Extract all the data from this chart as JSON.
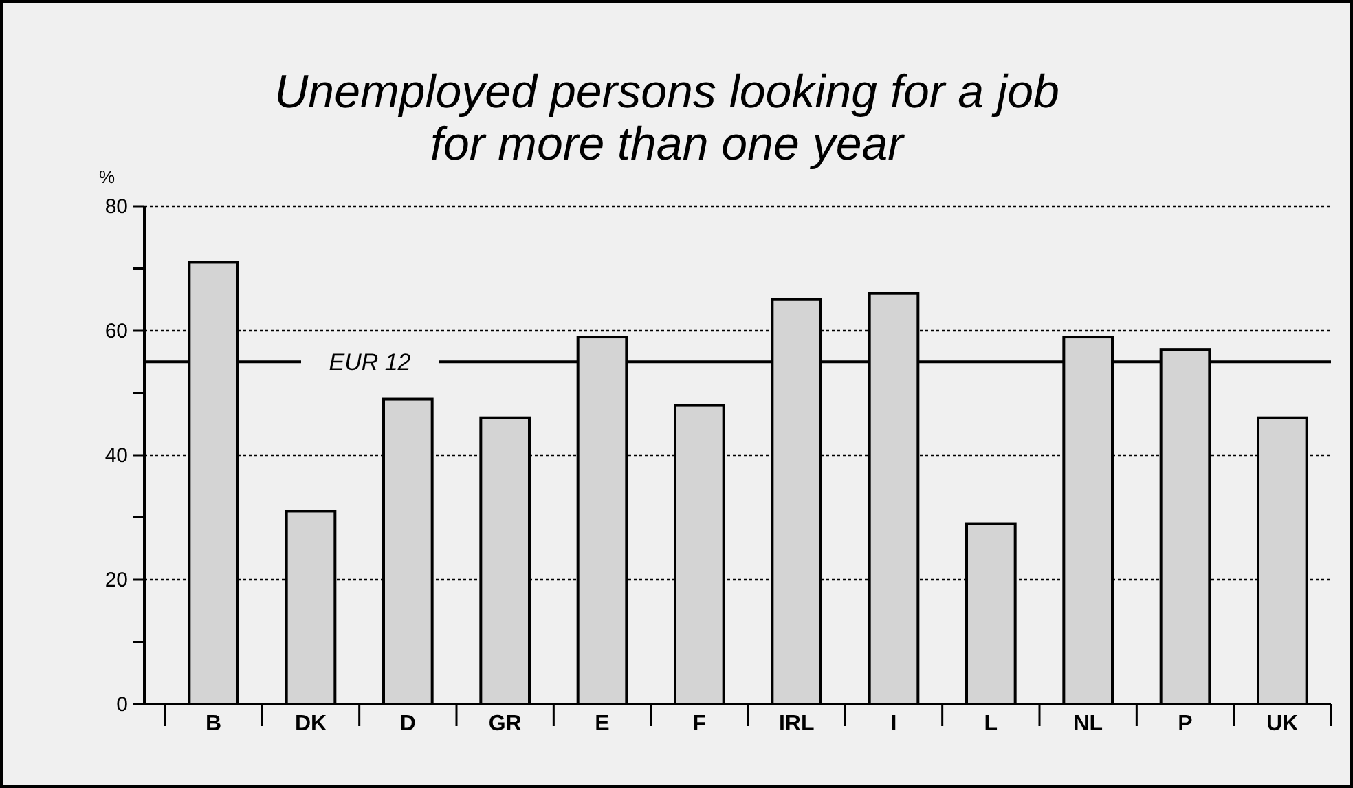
{
  "chart_data": {
    "type": "bar",
    "title": "Unemployed persons looking for a job\nfor more than one year",
    "ylabel": "%",
    "categories": [
      "B",
      "DK",
      "D",
      "GR",
      "E",
      "F",
      "IRL",
      "I",
      "L",
      "NL",
      "P",
      "UK"
    ],
    "values": [
      71,
      31,
      49,
      46,
      59,
      48,
      65,
      66,
      29,
      59,
      57,
      46
    ],
    "color": "#d4d4d4",
    "ylim": [
      0,
      80
    ],
    "yticks": [
      0,
      {
        "value": 10,
        "label": null
      },
      20,
      {
        "value": 30,
        "label": null
      },
      40,
      {
        "value": 50,
        "label": null
      },
      60,
      {
        "value": 70,
        "label": null
      },
      80
    ],
    "grid": "y",
    "ref_lines": [
      {
        "axis": "y",
        "value": 55,
        "label": "EUR 12",
        "color": "#000000",
        "line_style": "solid"
      }
    ]
  }
}
